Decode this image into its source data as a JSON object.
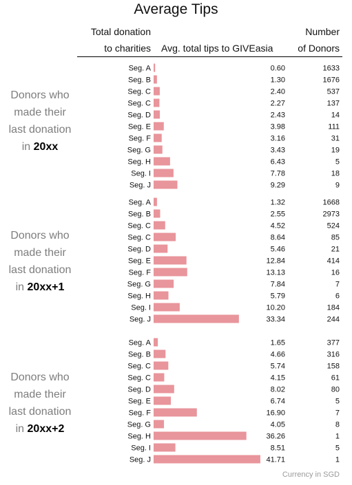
{
  "title": "Average Tips",
  "headers": {
    "total_line1": "Total donation",
    "total_line2": "to charities",
    "avg": "Avg. total tips to GIVEasia",
    "num_line1": "Number",
    "num_line2": "of Donors"
  },
  "groups": [
    {
      "label_lines": [
        "Donors who",
        "made their",
        "last donation"
      ],
      "label_prefix": "in",
      "label_bold": "20xx"
    },
    {
      "label_lines": [
        "Donors who",
        "made their",
        "last donation"
      ],
      "label_prefix": "in",
      "label_bold": "20xx+1"
    },
    {
      "label_lines": [
        "Donors who",
        "made their",
        "last donation"
      ],
      "label_prefix": "in",
      "label_bold": "20xx+2"
    }
  ],
  "footnote": "Currency in SGD",
  "colors": {
    "bar": "#e8959b",
    "text": "#111111",
    "group_label": "#7d7d7d"
  },
  "chart_data": {
    "type": "bar",
    "orientation": "horizontal",
    "title": "Average Tips",
    "xlim": [
      0,
      42
    ],
    "groups": [
      {
        "name": "20xx",
        "categories": [
          "Seg. A",
          "Seg. B",
          "Seg. C",
          "Seg. C",
          "Seg. D",
          "Seg. E",
          "Seg. F",
          "Seg. G",
          "Seg. H",
          "Seg. I",
          "Seg. J"
        ],
        "values": [
          0.6,
          1.3,
          2.4,
          2.27,
          2.43,
          3.98,
          3.16,
          3.43,
          6.43,
          7.78,
          9.29
        ],
        "labels": [
          "0.60",
          "1.30",
          "2.40",
          "2.27",
          "2.43",
          "3.98",
          "3.16",
          "3.43",
          "6.43",
          "7.78",
          "9.29"
        ],
        "donors": [
          "1633",
          "1676",
          "537",
          "137",
          "14",
          "111",
          "31",
          "19",
          "5",
          "18",
          "9"
        ]
      },
      {
        "name": "20xx+1",
        "categories": [
          "Seg. A",
          "Seg. B",
          "Seg. C",
          "Seg. C",
          "Seg. D",
          "Seg. E",
          "Seg. F",
          "Seg. G",
          "Seg. H",
          "Seg. I",
          "Seg. J"
        ],
        "values": [
          1.32,
          2.55,
          4.52,
          8.64,
          5.46,
          12.84,
          13.13,
          7.84,
          5.79,
          10.2,
          33.34
        ],
        "labels": [
          "1.32",
          "2.55",
          "4.52",
          "8.64",
          "5.46",
          "12.84",
          "13.13",
          "7.84",
          "5.79",
          "10.20",
          "33.34"
        ],
        "donors": [
          "1668",
          "2973",
          "524",
          "85",
          "21",
          "414",
          "16",
          "7",
          "6",
          "184",
          "244"
        ]
      },
      {
        "name": "20xx+2",
        "categories": [
          "Seg. A",
          "Seg. B",
          "Seg. C",
          "Seg. C",
          "Seg. D",
          "Seg. E",
          "Seg. F",
          "Seg. G",
          "Seg. H",
          "Seg. I",
          "Seg. J"
        ],
        "values": [
          1.65,
          4.66,
          5.74,
          4.15,
          8.02,
          6.74,
          16.9,
          4.05,
          36.26,
          8.51,
          41.71
        ],
        "labels": [
          "1.65",
          "4.66",
          "5.74",
          "4.15",
          "8.02",
          "6.74",
          "16.90",
          "4.05",
          "36.26",
          "8.51",
          "41.71"
        ],
        "donors": [
          "377",
          "316",
          "158",
          "61",
          "80",
          "5",
          "7",
          "8",
          "1",
          "5",
          "1"
        ]
      }
    ]
  }
}
